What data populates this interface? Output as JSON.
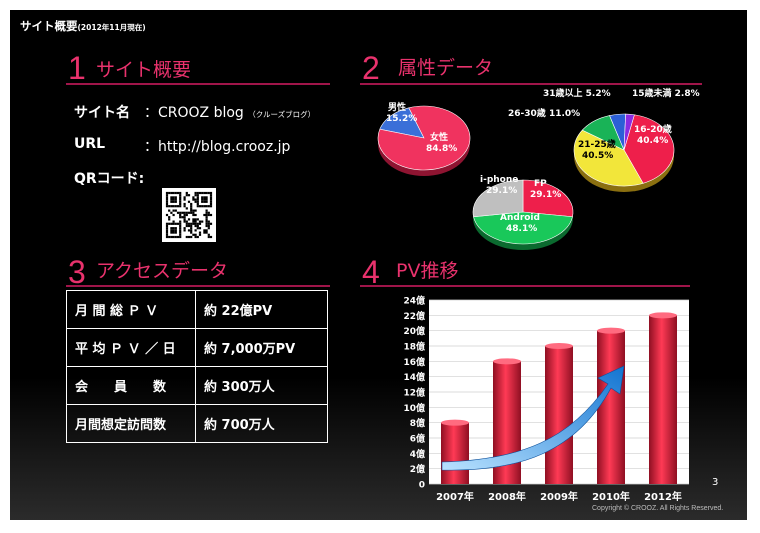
{
  "slide": {
    "header_main": "サイト概要",
    "header_sub": "(2012年11月現在)",
    "page_number": "3",
    "copyright": "Copyright © CROOZ. All Rights Reserved."
  },
  "section1": {
    "number": "1",
    "title": "サイト概要",
    "site_label": "サイト名",
    "site_value": "：CROOZ blog",
    "site_reading": "（クルーズブログ）",
    "url_label": "URL",
    "url_value": "：http://blog.crooz.jp",
    "qr_label": "QRコード:"
  },
  "section2": {
    "number": "2",
    "title": "属性データ",
    "pies": [
      {
        "name": "gender",
        "slices": [
          {
            "label": "男性",
            "value": 15.2,
            "value_text": "15.2%",
            "color": "#3a6fd8"
          },
          {
            "label": "女性",
            "value": 84.8,
            "value_text": "84.8%",
            "color": "#f0335f"
          }
        ]
      },
      {
        "name": "device",
        "slices": [
          {
            "label": "FP",
            "value": 29.1,
            "value_text": "29.1%",
            "color": "#ee1f4b"
          },
          {
            "label": "Android",
            "value": 48.1,
            "value_text": "48.1%",
            "color": "#19c85a"
          },
          {
            "label": "i-phone",
            "value": 29.1,
            "value_text": "29.1%",
            "color": "#bfbfbf"
          }
        ]
      },
      {
        "name": "age",
        "slices": [
          {
            "label": "16-20歳",
            "value": 40.4,
            "value_text": "40.4%",
            "color": "#ee1f4b"
          },
          {
            "label": "21-25歳",
            "value": 40.5,
            "value_text": "40.5%",
            "color": "#f2e63a"
          },
          {
            "label": "26-30歳",
            "value": 11.0,
            "value_text": "11.0%",
            "color": "#19b357"
          },
          {
            "label": "31歳以上",
            "value": 5.2,
            "value_text": "5.2%",
            "color": "#2c5fd6"
          },
          {
            "label": "15歳未満",
            "value": 2.8,
            "value_text": "2.8%",
            "color": "#8a2be2"
          }
        ]
      }
    ]
  },
  "section3": {
    "number": "3",
    "title": "アクセスデータ",
    "rows": [
      {
        "label": "月 間 総 Ｐ Ｖ",
        "value": "約 22億PV"
      },
      {
        "label": "平 均 Ｐ Ｖ ／ 日",
        "value": "約 7,000万PV"
      },
      {
        "label": "会　　員　　数",
        "value": "約 300万人"
      },
      {
        "label": "月間想定訪問数",
        "value": "約 700万人"
      }
    ]
  },
  "section4": {
    "number": "4",
    "title": "PV推移"
  },
  "chart_data": {
    "type": "bar",
    "categories": [
      "2007年",
      "2008年",
      "2009年",
      "2010年",
      "2012年"
    ],
    "values": [
      8,
      16,
      18,
      20,
      22
    ],
    "yticks": [
      "0",
      "2億",
      "4億",
      "6億",
      "8億",
      "10億",
      "12億",
      "14億",
      "16億",
      "18億",
      "20億",
      "22億",
      "24億"
    ],
    "ylim": [
      0,
      24
    ],
    "grid": true,
    "bar_color": "#e8203f",
    "trend_arrow_color": "#1f8fe0"
  }
}
